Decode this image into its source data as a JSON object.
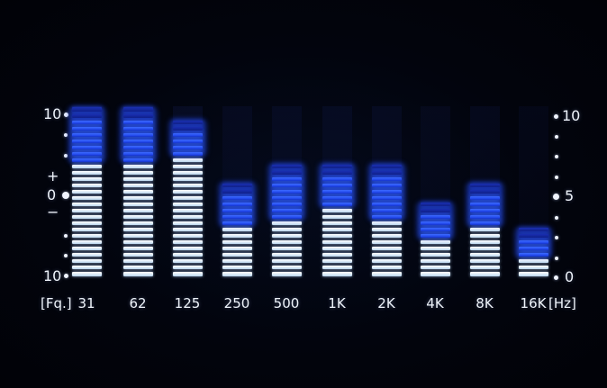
{
  "left_scale": {
    "top": "10",
    "plus": "+",
    "zero": "0",
    "minus": "−",
    "bottom": "10"
  },
  "right_scale": {
    "top": "10",
    "mid": "5",
    "bottom": "0"
  },
  "freq_axis": {
    "prefix": "[Fq.]",
    "suffix": "[Hz]"
  },
  "bands": [
    {
      "label": "31",
      "level": 0.66,
      "peak": 1.0
    },
    {
      "label": "62",
      "level": 0.66,
      "peak": 1.0
    },
    {
      "label": "125",
      "level": 0.7,
      "peak": 0.93
    },
    {
      "label": "250",
      "level": 0.3,
      "peak": 0.55
    },
    {
      "label": "500",
      "level": 0.35,
      "peak": 0.65
    },
    {
      "label": "1K",
      "level": 0.42,
      "peak": 0.68
    },
    {
      "label": "2K",
      "level": 0.35,
      "peak": 0.68
    },
    {
      "label": "4K",
      "level": 0.22,
      "peak": 0.43
    },
    {
      "label": "8K",
      "level": 0.28,
      "peak": 0.54
    },
    {
      "label": "16K",
      "level": 0.12,
      "peak": 0.31
    }
  ],
  "colors": {
    "lit_segment": "#e6f0fa",
    "peak_segment": "#2a50ff",
    "background": "#02040d",
    "text": "#eef3fa"
  }
}
